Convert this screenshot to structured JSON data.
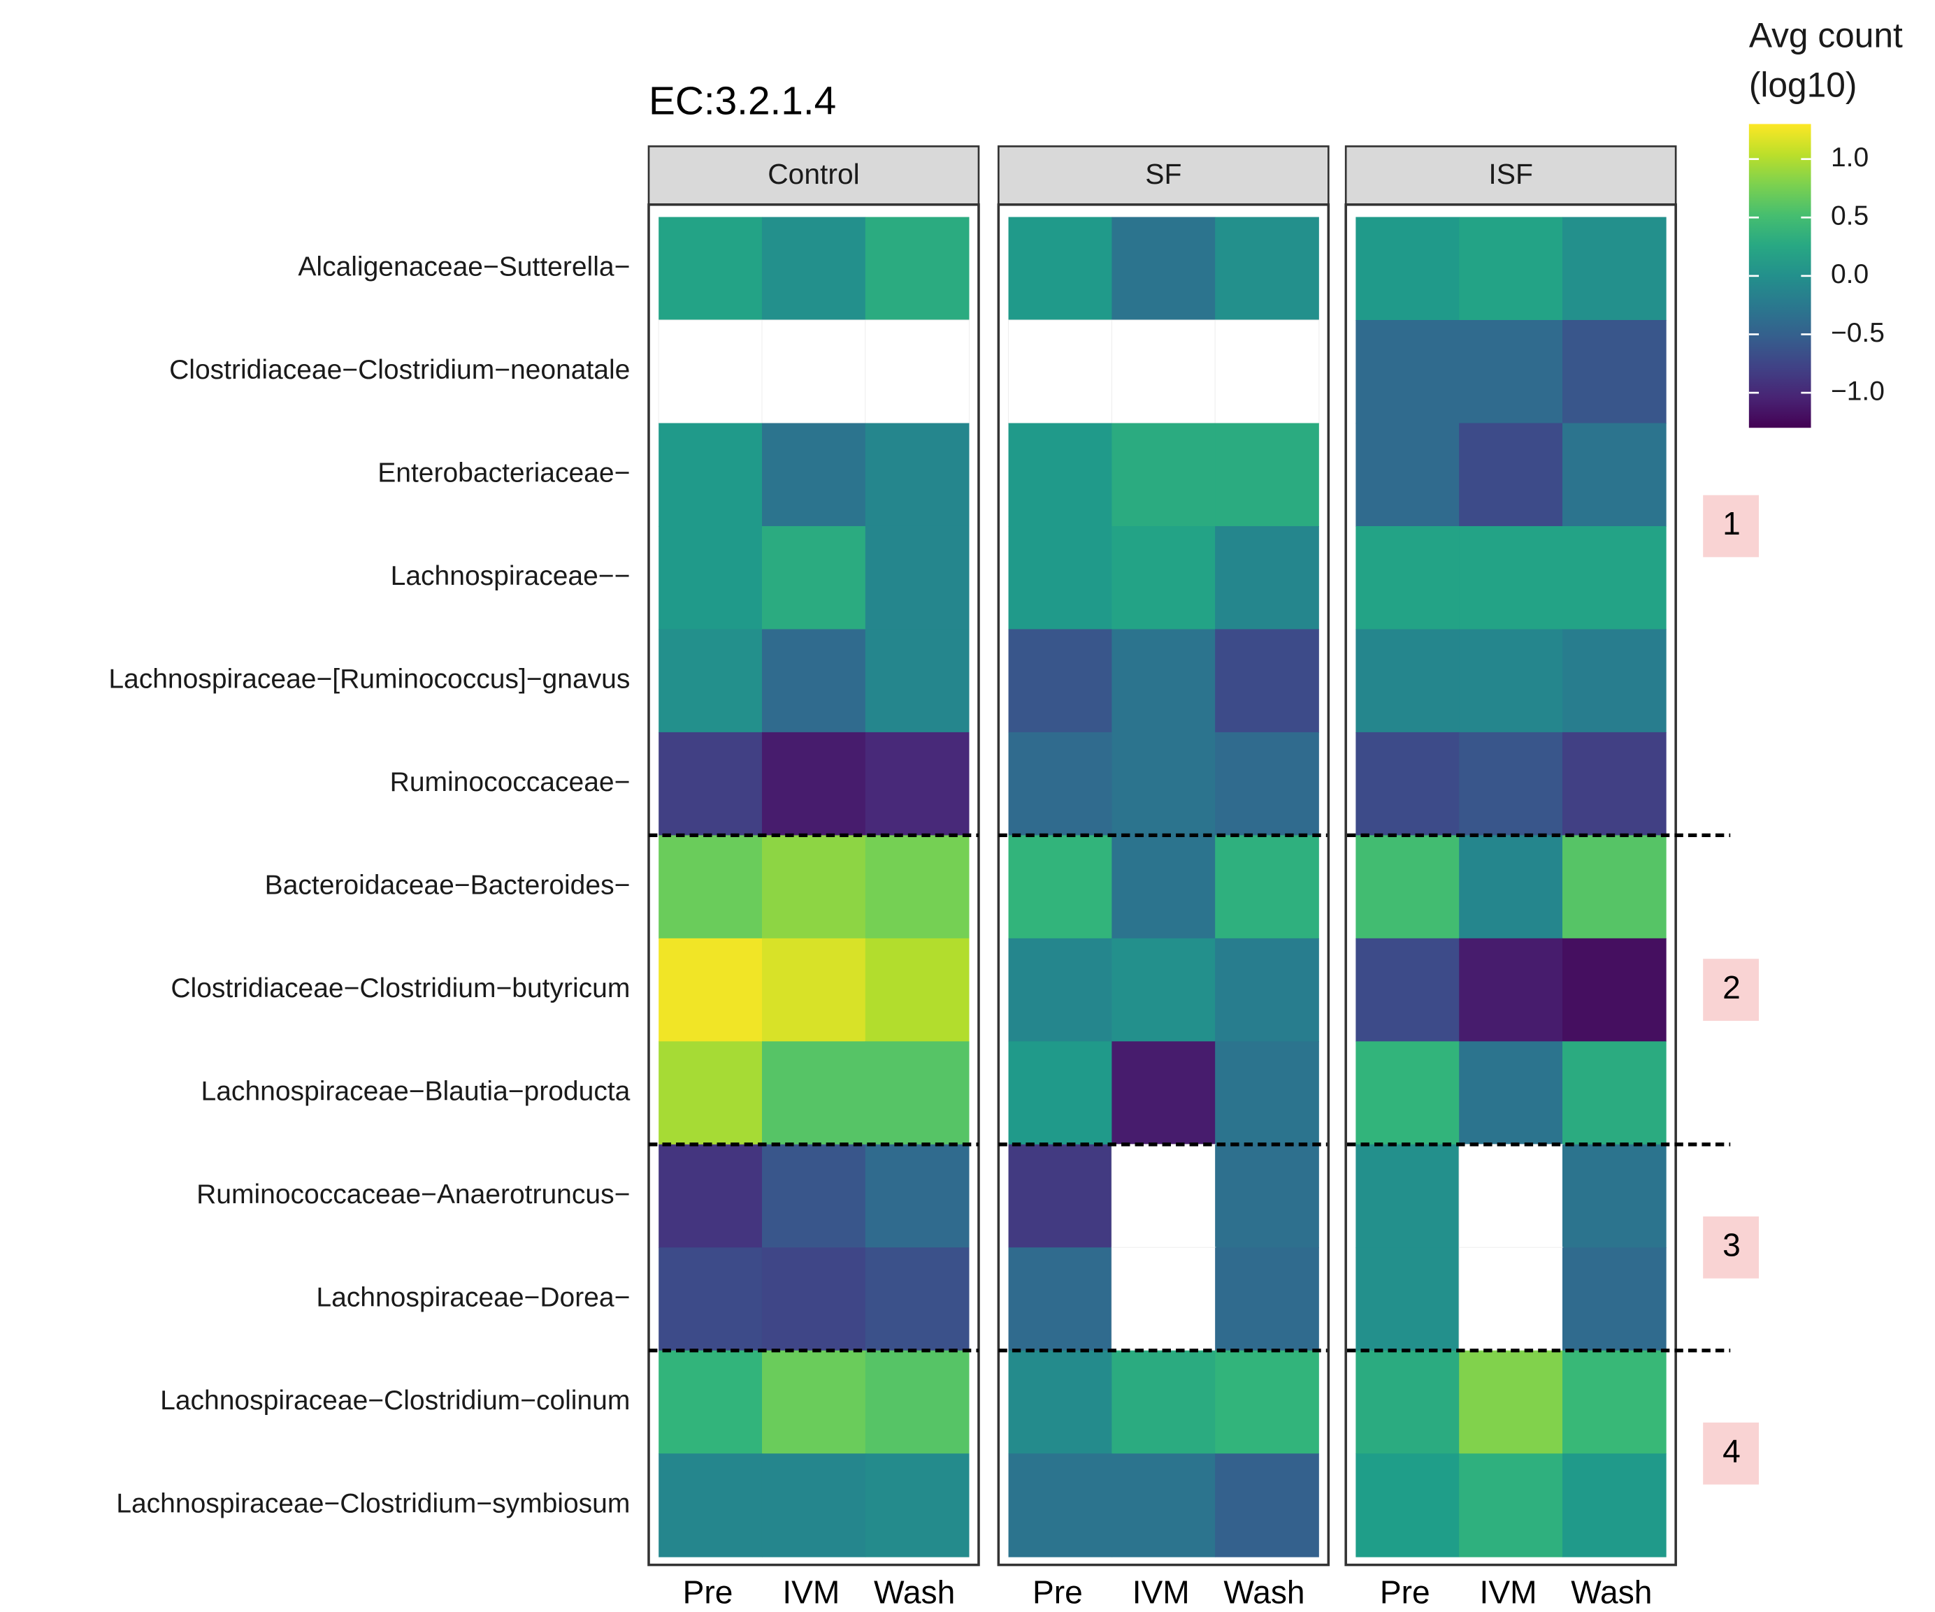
{
  "chart_data": {
    "type": "heatmap",
    "title": "EC:3.2.1.4",
    "legend": {
      "title_line1": "Avg count",
      "title_line2": "(log10)",
      "ticks": [
        "1.0",
        "0.5",
        "0.0",
        "−0.5",
        "−1.0"
      ],
      "tick_values": [
        1.0,
        0.5,
        0.0,
        -0.5,
        -1.0
      ],
      "range": [
        -1.3,
        1.3
      ],
      "colormap": "viridis",
      "placement": "top-right"
    },
    "panels": [
      "Control",
      "SF",
      "ISF"
    ],
    "columns": [
      "Pre",
      "IVM",
      "Wash"
    ],
    "rows": [
      "Alcaligenaceae−Sutterella−",
      "Clostridiaceae−Clostridium−neonatale",
      "Enterobacteriaceae−",
      "Lachnospiraceae−−",
      "Lachnospiraceae−[Ruminococcus]−gnavus",
      "Ruminococcaceae−",
      "Bacteroidaceae−Bacteroides−",
      "Clostridiaceae−Clostridium−butyricum",
      "Lachnospiraceae−Blautia−producta",
      "Ruminococcaceae−Anaerotruncus−",
      "Lachnospiraceae−Dorea−",
      "Lachnospiraceae−Clostridium−colinum",
      "Lachnospiraceae−Clostridium−symbiosum"
    ],
    "values": [
      [
        0.2,
        0.0,
        0.3,
        0.1,
        -0.3,
        0.0,
        0.1,
        0.2,
        0.0
      ],
      [
        null,
        null,
        null,
        null,
        null,
        null,
        -0.4,
        -0.4,
        -0.6
      ],
      [
        0.1,
        -0.3,
        -0.1,
        0.1,
        0.3,
        0.3,
        -0.4,
        -0.7,
        -0.3
      ],
      [
        0.1,
        0.3,
        -0.1,
        0.1,
        0.2,
        -0.1,
        0.2,
        0.2,
        0.2
      ],
      [
        0.0,
        -0.4,
        -0.1,
        -0.6,
        -0.3,
        -0.7,
        -0.1,
        -0.1,
        -0.2
      ],
      [
        -0.8,
        -1.1,
        -1.0,
        -0.4,
        -0.3,
        -0.4,
        -0.7,
        -0.6,
        -0.8
      ],
      [
        0.7,
        0.85,
        0.75,
        0.4,
        -0.3,
        0.35,
        0.5,
        -0.1,
        0.6
      ],
      [
        1.25,
        1.15,
        1.0,
        -0.1,
        0.0,
        -0.2,
        -0.7,
        -1.1,
        -1.2
      ],
      [
        0.95,
        0.6,
        0.6,
        0.1,
        -1.1,
        -0.3,
        0.4,
        -0.3,
        0.3
      ],
      [
        -0.9,
        -0.6,
        -0.4,
        -0.85,
        null,
        -0.35,
        0.0,
        null,
        -0.3
      ],
      [
        -0.7,
        -0.75,
        -0.65,
        -0.4,
        null,
        -0.4,
        0.0,
        null,
        -0.4
      ],
      [
        0.4,
        0.7,
        0.6,
        -0.05,
        0.3,
        0.4,
        0.3,
        0.8,
        0.45
      ],
      [
        -0.1,
        -0.1,
        -0.05,
        -0.3,
        -0.3,
        -0.5,
        0.15,
        0.35,
        0.1
      ]
    ],
    "groups": [
      {
        "label": "1",
        "rows": [
          0,
          5
        ]
      },
      {
        "label": "2",
        "rows": [
          6,
          8
        ]
      },
      {
        "label": "3",
        "rows": [
          9,
          10
        ]
      },
      {
        "label": "4",
        "rows": [
          11,
          12
        ]
      }
    ],
    "group_box_color": "#f9d3d3",
    "strip_color": "#d9d9d9",
    "missing_color": "#ffffff"
  }
}
